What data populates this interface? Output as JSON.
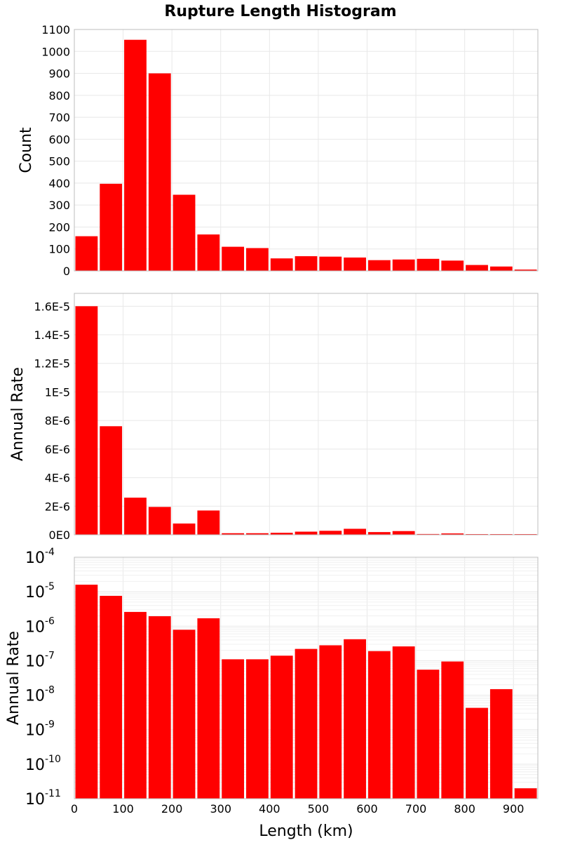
{
  "title": "Rupture Length Histogram",
  "colors": {
    "bar": "#ff0000",
    "grid": "#e8e8e8",
    "frame": "#bdbdbd"
  },
  "chart_data": [
    {
      "type": "bar",
      "id": "count",
      "title": "Rupture Length Histogram",
      "ylabel": "Count",
      "xlim": [
        0,
        950
      ],
      "ylim": [
        0,
        1100
      ],
      "bin_width": 50,
      "x": [
        25,
        75,
        125,
        175,
        225,
        275,
        325,
        375,
        425,
        475,
        525,
        575,
        625,
        675,
        725,
        775,
        825,
        875,
        925
      ],
      "values": [
        158,
        397,
        1053,
        900,
        347,
        166,
        110,
        104,
        57,
        67,
        65,
        61,
        49,
        52,
        55,
        47,
        27,
        20,
        6
      ],
      "yticks": [
        0,
        100,
        200,
        300,
        400,
        500,
        600,
        700,
        800,
        900,
        1000,
        1100
      ],
      "ytick_labels": [
        "0",
        "100",
        "200",
        "300",
        "400",
        "500",
        "600",
        "700",
        "800",
        "900",
        "1000",
        "1100"
      ],
      "grid": true
    },
    {
      "type": "bar",
      "id": "rate-linear",
      "ylabel": "Annual Rate",
      "xlim": [
        0,
        950
      ],
      "ylim": [
        0,
        1.69e-05
      ],
      "bin_width": 50,
      "x": [
        25,
        75,
        125,
        175,
        225,
        275,
        325,
        375,
        425,
        475,
        525,
        575,
        625,
        675,
        725,
        775,
        825,
        875,
        925
      ],
      "values": [
        1.6e-05,
        7.6e-06,
        2.6e-06,
        1.95e-06,
        7.9e-07,
        1.7e-06,
        1.1e-07,
        1.1e-07,
        1.4e-07,
        2.2e-07,
        2.8e-07,
        4.2e-07,
        1.9e-07,
        2.6e-07,
        5.5e-08,
        9.5e-08,
        4.3e-09,
        1.5e-08,
        2e-11
      ],
      "yticks": [
        0,
        2e-06,
        4e-06,
        6e-06,
        8e-06,
        1e-05,
        1.2e-05,
        1.4e-05,
        1.6e-05
      ],
      "ytick_labels": [
        "0E0",
        "2E-6",
        "4E-6",
        "6E-6",
        "8E-6",
        "1E-5",
        "1.2E-5",
        "1.4E-5",
        "1.6E-5"
      ],
      "grid": true
    },
    {
      "type": "bar",
      "id": "rate-log",
      "ylabel": "Annual Rate",
      "xlabel": "Length (km)",
      "yscale": "log",
      "xlim": [
        0,
        950
      ],
      "ylim": [
        1e-11,
        0.0001
      ],
      "bin_width": 50,
      "x": [
        25,
        75,
        125,
        175,
        225,
        275,
        325,
        375,
        425,
        475,
        525,
        575,
        625,
        675,
        725,
        775,
        825,
        875,
        925
      ],
      "values": [
        1.6e-05,
        7.6e-06,
        2.6e-06,
        1.95e-06,
        7.9e-07,
        1.7e-06,
        1.1e-07,
        1.1e-07,
        1.4e-07,
        2.2e-07,
        2.8e-07,
        4.2e-07,
        1.9e-07,
        2.6e-07,
        5.5e-08,
        9.5e-08,
        4.3e-09,
        1.5e-08,
        2e-11
      ],
      "yticks_exp": [
        -11,
        -10,
        -9,
        -8,
        -7,
        -6,
        -5,
        -4
      ],
      "ytick_base": "10",
      "ytick_exponents": [
        "-11",
        "-10",
        "-9",
        "-8",
        "-7",
        "-6",
        "-5",
        "-4"
      ],
      "xticks": [
        0,
        100,
        200,
        300,
        400,
        500,
        600,
        700,
        800,
        900
      ],
      "xtick_labels": [
        "0",
        "100",
        "200",
        "300",
        "400",
        "500",
        "600",
        "700",
        "800",
        "900"
      ],
      "grid": true
    }
  ]
}
